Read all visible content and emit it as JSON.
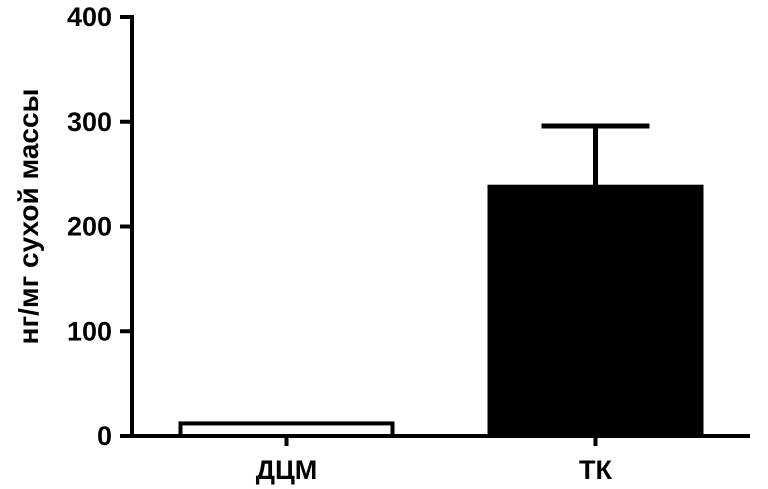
{
  "chart_data": {
    "type": "bar",
    "categories": [
      "ДЦМ",
      "ТК"
    ],
    "values": [
      12,
      238
    ],
    "error_upper": [
      0,
      58
    ],
    "bar_fills": [
      "#ffffff",
      "#000000"
    ],
    "ylabel": "нг/мг сухой массы",
    "xlabel": "",
    "ylim": [
      0,
      400
    ],
    "yticks": [
      0,
      100,
      200,
      300,
      400
    ],
    "ytick_labels": [
      "0",
      "100",
      "200",
      "300",
      "400"
    ],
    "grid": false,
    "legend": "none"
  }
}
